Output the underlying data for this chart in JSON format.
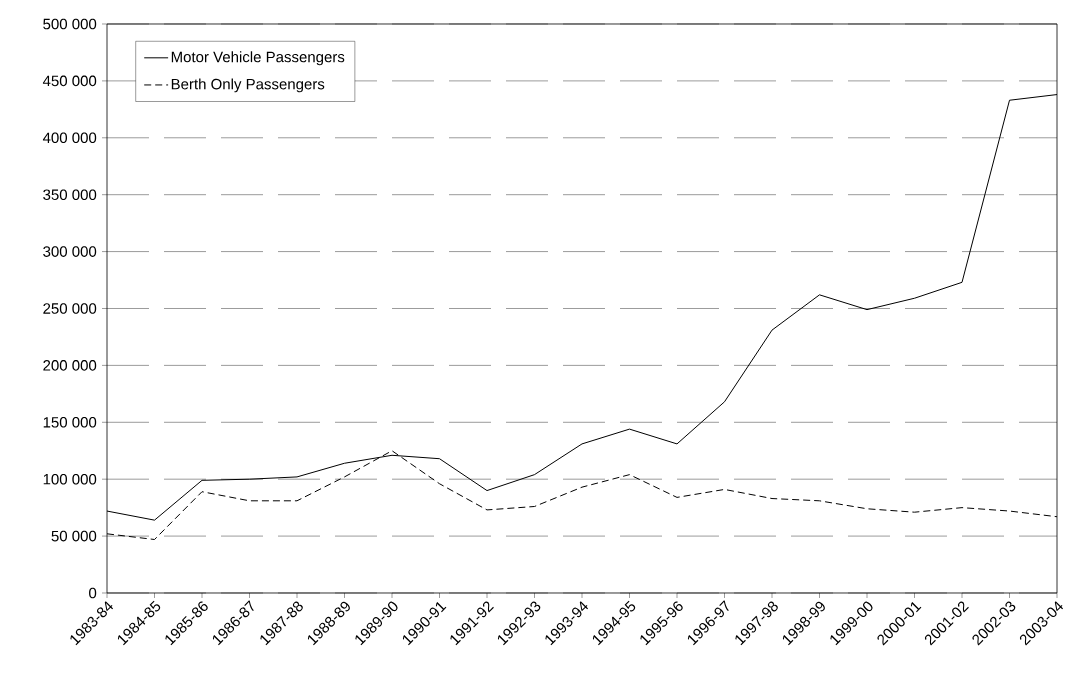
{
  "chart_data": {
    "type": "line",
    "categories": [
      "1983-84",
      "1984-85",
      "1985-86",
      "1986-87",
      "1987-88",
      "1988-89",
      "1989-90",
      "1990-91",
      "1991-92",
      "1992-93",
      "1993-94",
      "1994-95",
      "1995-96",
      "1996-97",
      "1997-98",
      "1998-99",
      "1999-00",
      "2000-01",
      "2001-02",
      "2002-03",
      "2003-04"
    ],
    "series": [
      {
        "name": "Motor Vehicle Passengers",
        "color": "#000000",
        "line_style": "solid",
        "values": [
          72000,
          64000,
          99000,
          100000,
          102000,
          114000,
          121000,
          118000,
          90000,
          104000,
          131000,
          144000,
          131000,
          168000,
          231000,
          262000,
          249000,
          259000,
          273000,
          433000,
          438000
        ]
      },
      {
        "name": "Berth Only Passengers",
        "color": "#000000",
        "line_style": "dashed",
        "values": [
          52000,
          47000,
          89000,
          81000,
          81000,
          102000,
          125000,
          96000,
          73000,
          76000,
          93000,
          104000,
          84000,
          91000,
          83000,
          81000,
          74000,
          71000,
          75000,
          72000,
          67000
        ]
      }
    ],
    "ylim": [
      0,
      500000
    ],
    "yticks": [
      0,
      {
        "value": 50000,
        "label": "50 000"
      },
      {
        "value": 100000,
        "label": "100 000"
      },
      {
        "value": 150000,
        "label": "150 000"
      },
      {
        "value": 200000,
        "label": "200 000"
      },
      {
        "value": 250000,
        "label": "250 000"
      },
      {
        "value": 300000,
        "label": "300 000"
      },
      {
        "value": 350000,
        "label": "350 000"
      },
      {
        "value": 400000,
        "label": "400 000"
      },
      {
        "value": 450000,
        "label": "450 000"
      },
      {
        "value": 500000,
        "label": "500 000"
      }
    ],
    "grid": "y",
    "legend": "top left",
    "marker": "none"
  }
}
